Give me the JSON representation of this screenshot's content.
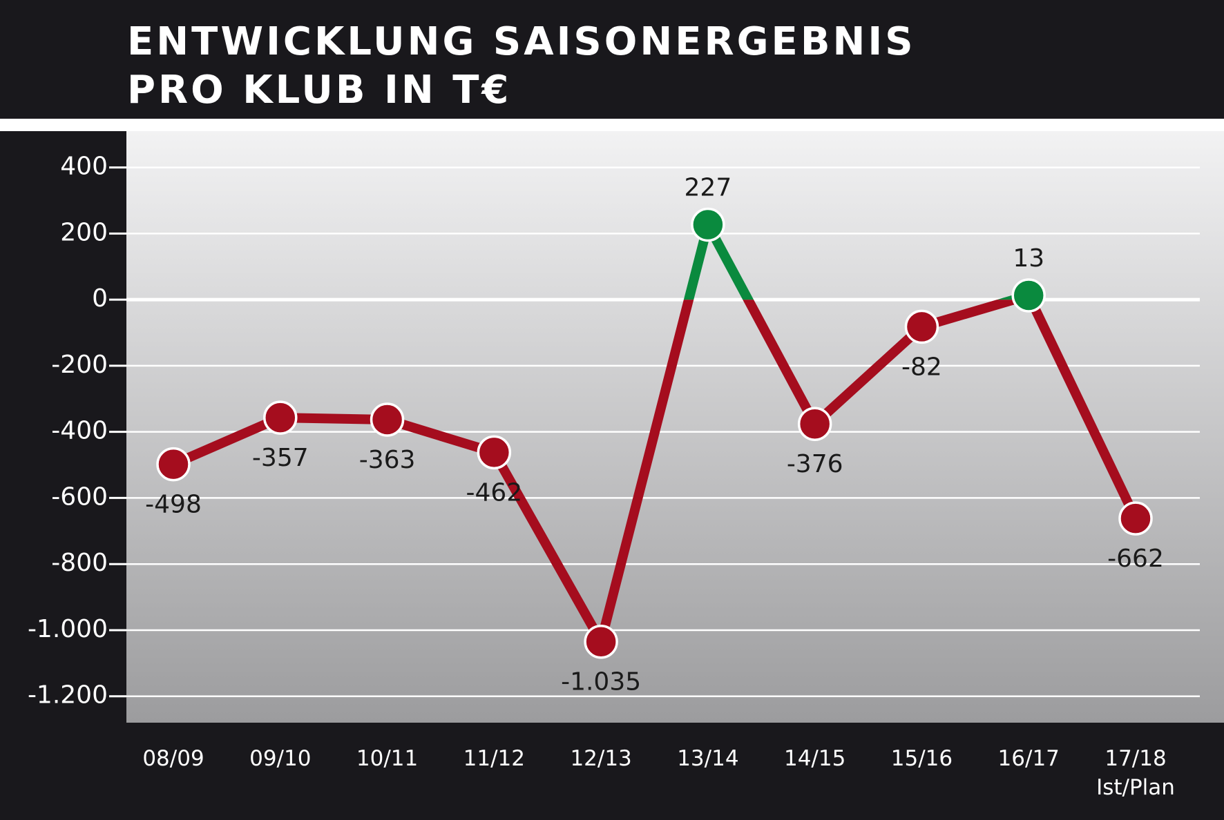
{
  "chart_data": {
    "type": "line",
    "title": "ENTWICKLUNG SAISONERGEBNIS\nPRO KLUB IN T€",
    "categories": [
      "08/09",
      "09/10",
      "10/11",
      "11/12",
      "12/13",
      "13/14",
      "14/15",
      "15/16",
      "16/17",
      "17/18\nIst/Plan"
    ],
    "series": [
      {
        "color": "#a50d1e",
        "positive_color": "#0a8a3e",
        "values": [
          -498,
          -357,
          -363,
          -462,
          -1035,
          227,
          -376,
          -82,
          13,
          -662
        ],
        "value_labels": [
          "-498",
          "-357",
          "-363",
          "-462",
          "-1.035",
          "227",
          "-376",
          "-82",
          "13",
          "-662"
        ]
      }
    ],
    "ylim": [
      -1280,
      510
    ],
    "yticks": [
      400,
      200,
      0,
      -200,
      -400,
      -600,
      -800,
      {
        "value": -1000,
        "label": "-1.000"
      },
      {
        "value": -1200,
        "label": "-1.200"
      }
    ],
    "grid": true
  }
}
